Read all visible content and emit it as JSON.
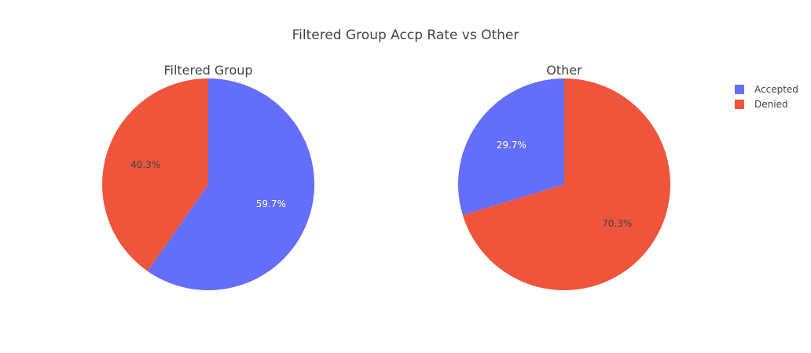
{
  "chart_data": {
    "type": "pie",
    "title": "Filtered Group Accp Rate vs Other",
    "legend": {
      "placement": "top-right",
      "entries": [
        {
          "label": "Accepted",
          "color": "#636efa"
        },
        {
          "label": "Denied",
          "color": "#ef553b"
        }
      ]
    },
    "pies": [
      {
        "title": "Filtered Group",
        "slices": [
          {
            "label": "Accepted",
            "value": 59.7,
            "text": "59.7%",
            "color": "#636efa",
            "text_color": "#ffffff"
          },
          {
            "label": "Denied",
            "value": 40.3,
            "text": "40.3%",
            "color": "#ef553b",
            "text_color": "#444444"
          }
        ]
      },
      {
        "title": "Other",
        "slices": [
          {
            "label": "Denied",
            "value": 70.3,
            "text": "70.3%",
            "color": "#ef553b",
            "text_color": "#444444"
          },
          {
            "label": "Accepted",
            "value": 29.7,
            "text": "29.7%",
            "color": "#636efa",
            "text_color": "#ffffff"
          }
        ]
      }
    ]
  }
}
